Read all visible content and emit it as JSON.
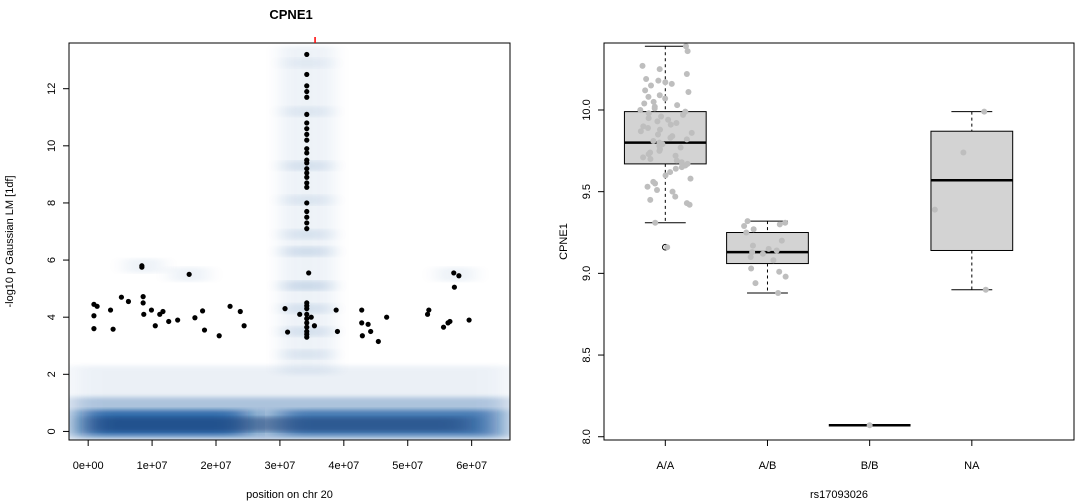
{
  "chart_data": [
    {
      "type": "scatter",
      "title": "CPNE1",
      "xlabel": "position on chr 20",
      "ylabel": "-log10 p Gaussian LM [1df]",
      "xlim": [
        -3000000,
        66000000
      ],
      "ylim": [
        -0.3,
        13.6
      ],
      "x_ticks": [
        0,
        10000000,
        20000000,
        30000000,
        40000000,
        50000000,
        60000000
      ],
      "x_tick_labels": [
        "0e+00",
        "1e+07",
        "2e+07",
        "3e+07",
        "4e+07",
        "5e+07",
        "6e+07"
      ],
      "y_ticks": [
        0,
        2,
        4,
        6,
        8,
        10,
        12
      ],
      "y_tick_labels": [
        "0",
        "2",
        "4",
        "6",
        "8",
        "10",
        "12"
      ],
      "marker_position": 35500000,
      "marker_color": "#ff0000",
      "background": "smoothed density of all tests (blue shading)",
      "density_color": "#08519c",
      "point_color": "#000000",
      "grid": false,
      "points": [
        {
          "x": 900000,
          "y": 4.45
        },
        {
          "x": 1400000,
          "y": 4.38
        },
        {
          "x": 900000,
          "y": 4.05
        },
        {
          "x": 900000,
          "y": 3.6
        },
        {
          "x": 3500000,
          "y": 4.25
        },
        {
          "x": 3900000,
          "y": 3.58
        },
        {
          "x": 5200000,
          "y": 4.7
        },
        {
          "x": 6300000,
          "y": 4.55
        },
        {
          "x": 8400000,
          "y": 5.8
        },
        {
          "x": 8400000,
          "y": 5.75
        },
        {
          "x": 8600000,
          "y": 4.72
        },
        {
          "x": 8600000,
          "y": 4.5
        },
        {
          "x": 8700000,
          "y": 4.1
        },
        {
          "x": 9900000,
          "y": 4.25
        },
        {
          "x": 10500000,
          "y": 3.7
        },
        {
          "x": 11200000,
          "y": 4.1
        },
        {
          "x": 11700000,
          "y": 4.2
        },
        {
          "x": 12600000,
          "y": 3.85
        },
        {
          "x": 14000000,
          "y": 3.9
        },
        {
          "x": 15800000,
          "y": 5.5
        },
        {
          "x": 16700000,
          "y": 3.98
        },
        {
          "x": 17900000,
          "y": 4.22
        },
        {
          "x": 18200000,
          "y": 3.55
        },
        {
          "x": 20500000,
          "y": 3.35
        },
        {
          "x": 22200000,
          "y": 4.38
        },
        {
          "x": 23800000,
          "y": 4.2
        },
        {
          "x": 24400000,
          "y": 3.7
        },
        {
          "x": 30800000,
          "y": 4.3
        },
        {
          "x": 31200000,
          "y": 3.48
        },
        {
          "x": 33100000,
          "y": 4.1
        },
        {
          "x": 34200000,
          "y": 13.2
        },
        {
          "x": 34200000,
          "y": 12.5
        },
        {
          "x": 34200000,
          "y": 12.1
        },
        {
          "x": 34200000,
          "y": 11.9
        },
        {
          "x": 34200000,
          "y": 11.7
        },
        {
          "x": 34200000,
          "y": 11.1
        },
        {
          "x": 34200000,
          "y": 10.8
        },
        {
          "x": 34200000,
          "y": 10.6
        },
        {
          "x": 34200000,
          "y": 10.4
        },
        {
          "x": 34200000,
          "y": 10.2
        },
        {
          "x": 34200000,
          "y": 9.9
        },
        {
          "x": 34200000,
          "y": 9.75
        },
        {
          "x": 34200000,
          "y": 9.5
        },
        {
          "x": 34200000,
          "y": 9.4
        },
        {
          "x": 34200000,
          "y": 9.2
        },
        {
          "x": 34200000,
          "y": 9.05
        },
        {
          "x": 34200000,
          "y": 8.9
        },
        {
          "x": 34200000,
          "y": 8.7
        },
        {
          "x": 34200000,
          "y": 8.55
        },
        {
          "x": 34200000,
          "y": 8.0
        },
        {
          "x": 34200000,
          "y": 7.7
        },
        {
          "x": 34200000,
          "y": 7.5
        },
        {
          "x": 34200000,
          "y": 7.3
        },
        {
          "x": 34200000,
          "y": 7.1
        },
        {
          "x": 34500000,
          "y": 5.55
        },
        {
          "x": 34200000,
          "y": 4.5
        },
        {
          "x": 34200000,
          "y": 4.4
        },
        {
          "x": 34200000,
          "y": 4.3
        },
        {
          "x": 34200000,
          "y": 4.1
        },
        {
          "x": 34200000,
          "y": 3.95
        },
        {
          "x": 34200000,
          "y": 3.8
        },
        {
          "x": 34200000,
          "y": 3.65
        },
        {
          "x": 34200000,
          "y": 3.5
        },
        {
          "x": 34200000,
          "y": 3.4
        },
        {
          "x": 34200000,
          "y": 3.3
        },
        {
          "x": 34900000,
          "y": 4.0
        },
        {
          "x": 35400000,
          "y": 3.7
        },
        {
          "x": 38800000,
          "y": 4.25
        },
        {
          "x": 39000000,
          "y": 3.5
        },
        {
          "x": 42800000,
          "y": 4.25
        },
        {
          "x": 42800000,
          "y": 3.8
        },
        {
          "x": 42900000,
          "y": 3.35
        },
        {
          "x": 43800000,
          "y": 3.75
        },
        {
          "x": 44200000,
          "y": 3.5
        },
        {
          "x": 45400000,
          "y": 3.15
        },
        {
          "x": 46700000,
          "y": 4.0
        },
        {
          "x": 53100000,
          "y": 4.1
        },
        {
          "x": 53300000,
          "y": 4.25
        },
        {
          "x": 55600000,
          "y": 3.65
        },
        {
          "x": 56300000,
          "y": 3.8
        },
        {
          "x": 56600000,
          "y": 3.85
        },
        {
          "x": 57200000,
          "y": 5.55
        },
        {
          "x": 57300000,
          "y": 5.05
        },
        {
          "x": 58000000,
          "y": 5.45
        },
        {
          "x": 59600000,
          "y": 3.9
        }
      ]
    },
    {
      "type": "box",
      "xlabel": "rs17093026",
      "ylabel": "CPNE1",
      "categories": [
        "A/A",
        "A/B",
        "B/B",
        "NA"
      ],
      "ylim": [
        7.98,
        10.41
      ],
      "y_ticks": [
        8.0,
        8.5,
        9.0,
        9.5,
        10.0
      ],
      "y_tick_labels": [
        "8.0",
        "8.5",
        "9.0",
        "9.5",
        "10.0"
      ],
      "box_fill": "#d3d3d3",
      "point_color": "#bebebe",
      "grid": false,
      "boxes": [
        {
          "category": "A/A",
          "min": 9.31,
          "q1": 9.67,
          "median": 9.8,
          "q3": 9.99,
          "max": 10.39,
          "outliers": [
            9.16
          ]
        },
        {
          "category": "A/B",
          "min": 8.88,
          "q1": 9.06,
          "median": 9.13,
          "q3": 9.25,
          "max": 9.32,
          "outliers": []
        },
        {
          "category": "B/B",
          "min": 8.07,
          "q1": 8.07,
          "median": 8.07,
          "q3": 8.07,
          "max": 8.07,
          "outliers": []
        },
        {
          "category": "NA",
          "min": 8.9,
          "q1": 9.14,
          "median": 9.57,
          "q3": 9.87,
          "max": 9.99,
          "outliers": []
        }
      ],
      "points": {
        "A/A": [
          10.39,
          10.36,
          10.27,
          10.25,
          10.22,
          10.19,
          10.18,
          10.17,
          10.16,
          10.15,
          10.12,
          10.11,
          10.09,
          10.08,
          10.07,
          10.05,
          10.04,
          10.03,
          10.02,
          10.01,
          10.0,
          9.99,
          9.98,
          9.97,
          9.96,
          9.95,
          9.94,
          9.93,
          9.92,
          9.91,
          9.9,
          9.89,
          9.88,
          9.87,
          9.86,
          9.85,
          9.84,
          9.83,
          9.82,
          9.81,
          9.8,
          9.79,
          9.78,
          9.77,
          9.76,
          9.75,
          9.74,
          9.73,
          9.72,
          9.71,
          9.7,
          9.69,
          9.68,
          9.67,
          9.66,
          9.65,
          9.64,
          9.62,
          9.6,
          9.58,
          9.56,
          9.55,
          9.53,
          9.51,
          9.5,
          9.47,
          9.45,
          9.43,
          9.42,
          9.31,
          9.16
        ],
        "A/B": [
          9.32,
          9.31,
          9.3,
          9.29,
          9.27,
          9.25,
          9.2,
          9.17,
          9.15,
          9.14,
          9.13,
          9.12,
          9.1,
          9.08,
          9.03,
          9.01,
          8.98,
          8.94,
          8.88
        ],
        "B/B": [
          8.07
        ],
        "NA": [
          9.99,
          9.74,
          9.39,
          8.9
        ]
      }
    }
  ]
}
